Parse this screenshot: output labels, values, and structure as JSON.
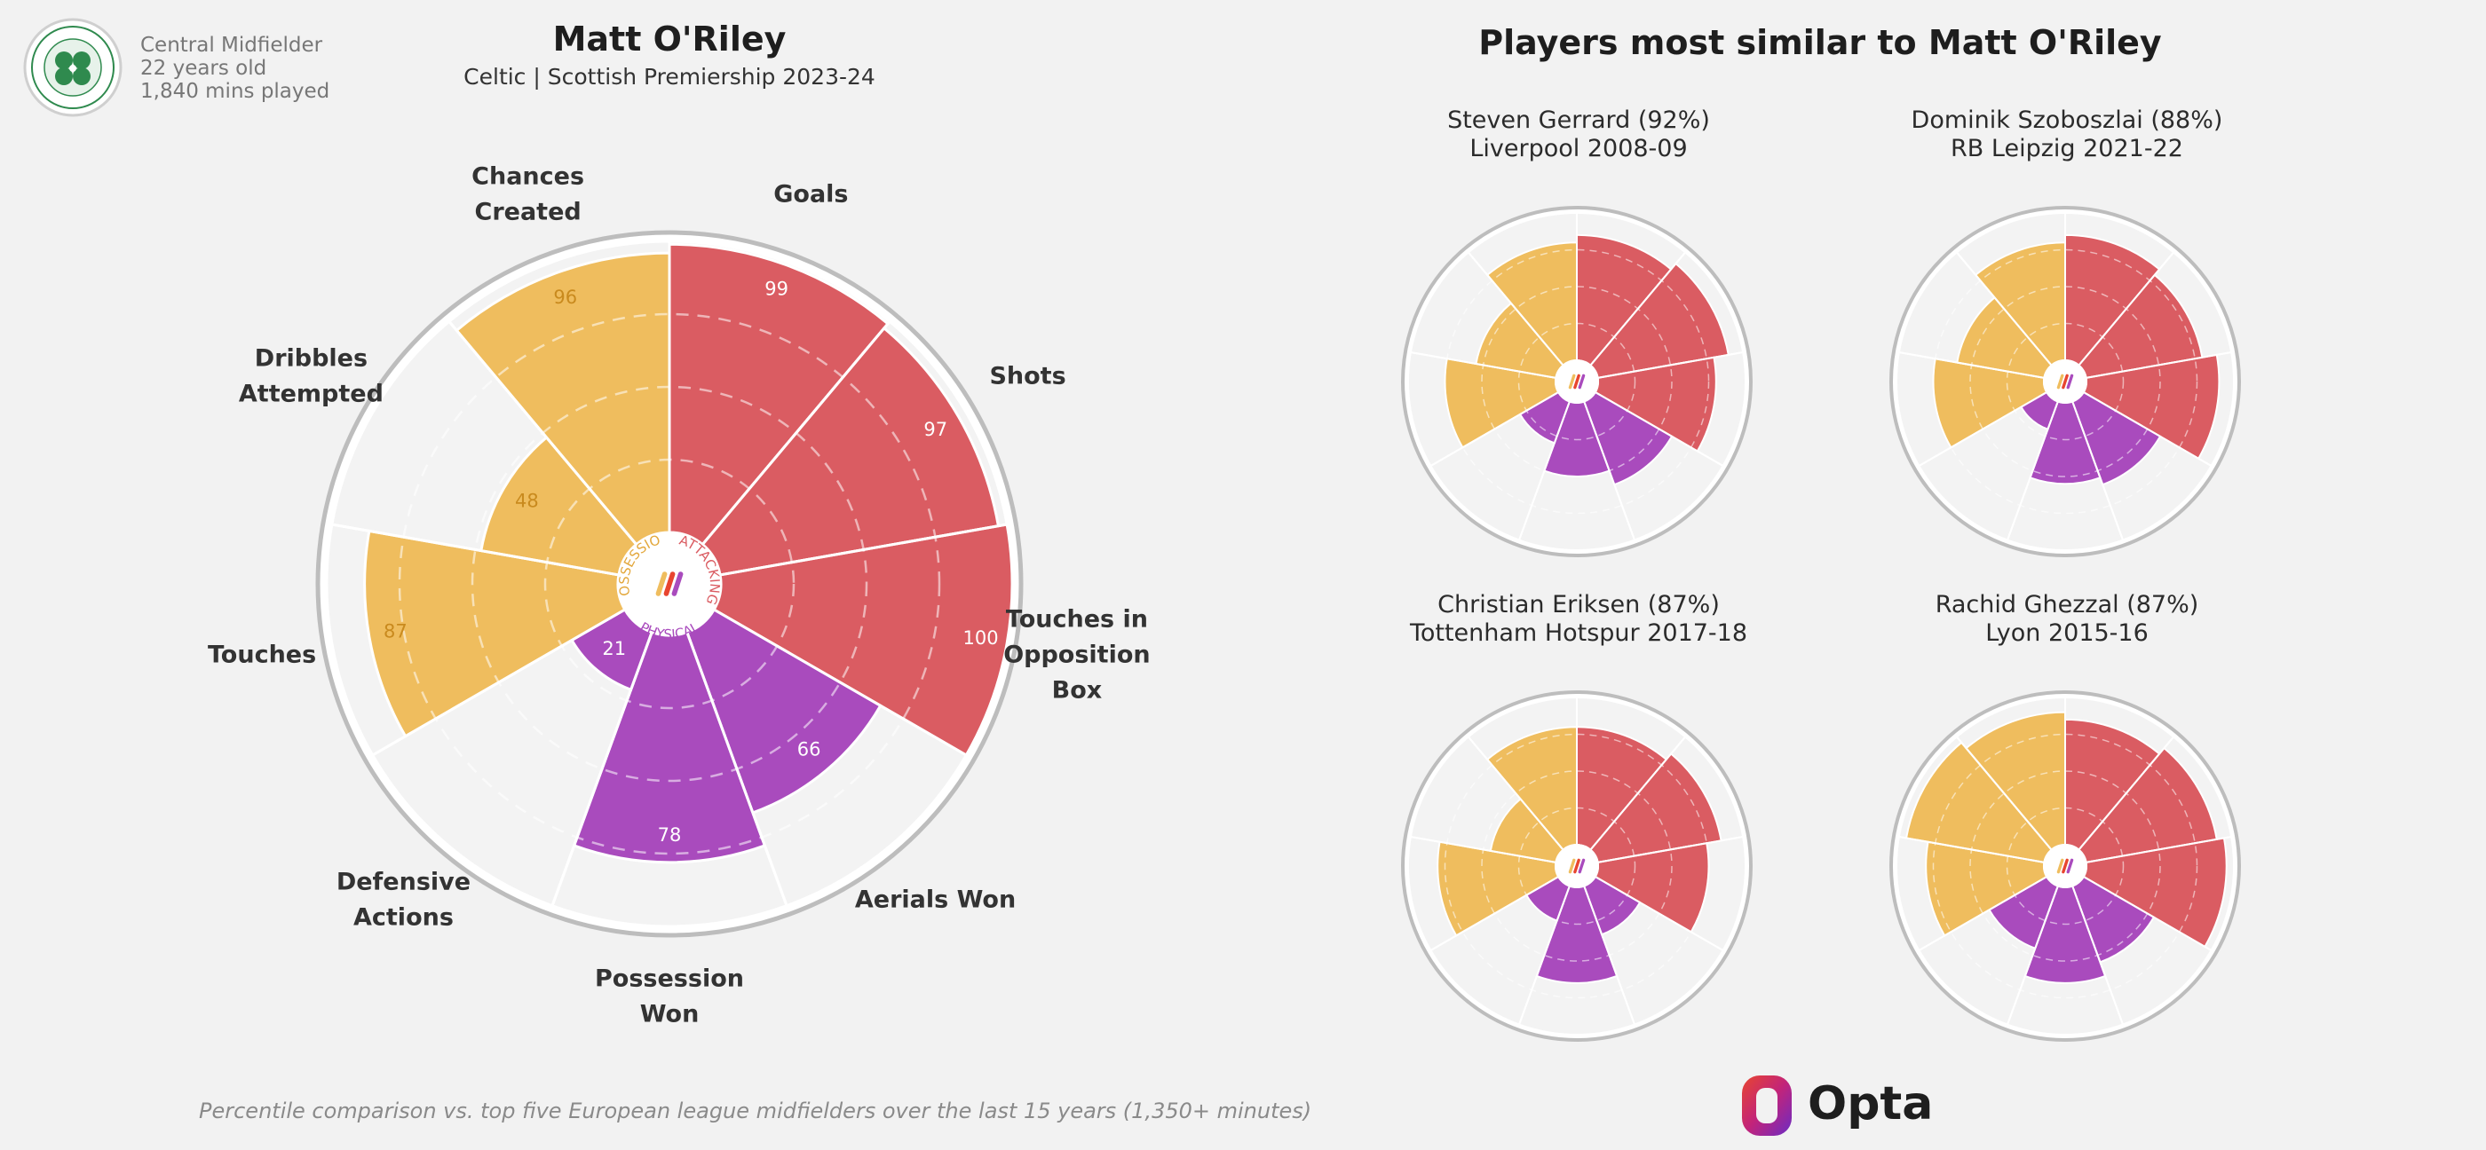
{
  "player": {
    "position": "Central Midfielder",
    "age": "22 years old",
    "minutes": "1,840 mins played",
    "name": "Matt O'Riley",
    "team_season": "Celtic | Scottish Premiership 2023-24"
  },
  "similar_title": "Players most similar to Matt O'Riley",
  "footnote": "Percentile comparison vs. top five European league midfielders over the last 15 years (1,350+ minutes)",
  "brand": {
    "name": "Opta"
  },
  "center_labels": {
    "attacking": "ATTACKING",
    "possession": "POSSESSION",
    "physical": "PHYSICAL"
  },
  "colors": {
    "attacking": "#da5c62",
    "possession": "#efbd5e",
    "physical": "#a94bbd",
    "background": "#f2f2f2",
    "ring": "#bdbdbd"
  },
  "icons": {
    "club_badge": "celtic-badge-icon",
    "brand_logo": "opta-logo-icon",
    "center_logo": "opta-mark-icon"
  },
  "chart_data": [
    {
      "type": "radar-bar",
      "title": "Matt O'Riley",
      "subtitle": "Celtic | Scottish Premiership 2023-24",
      "rlim": [
        0,
        100
      ],
      "metrics": [
        {
          "label": "Goals",
          "value": 99,
          "group": "attacking"
        },
        {
          "label": "Shots",
          "value": 97,
          "group": "attacking"
        },
        {
          "label": "Touches in Opposition Box",
          "value": 100,
          "group": "attacking"
        },
        {
          "label": "Aerials Won",
          "value": 66,
          "group": "physical"
        },
        {
          "label": "Possession Won",
          "value": 78,
          "group": "physical"
        },
        {
          "label": "Defensive Actions",
          "value": 21,
          "group": "physical"
        },
        {
          "label": "Touches",
          "value": 87,
          "group": "possession"
        },
        {
          "label": "Dribbles Attempted",
          "value": 48,
          "group": "possession"
        },
        {
          "label": "Chances Created",
          "value": 96,
          "group": "possession"
        }
      ],
      "axis_text": [
        [
          "Goals"
        ],
        [
          "Shots"
        ],
        [
          "Touches in",
          "Opposition",
          "Box"
        ],
        [
          "Aerials Won"
        ],
        [
          "Possession",
          "Won"
        ],
        [
          "Defensive",
          "Actions"
        ],
        [
          "Touches"
        ],
        [
          "Dribbles",
          "Attempted"
        ],
        [
          "Chances",
          "Created"
        ]
      ]
    },
    {
      "type": "radar-bar",
      "title": "Steven Gerrard (92%)",
      "subtitle": "Liverpool 2008-09",
      "rlim": [
        0,
        100
      ],
      "values": [
        85,
        90,
        80,
        60,
        50,
        30,
        75,
        55,
        80
      ],
      "groups": [
        "attacking",
        "attacking",
        "attacking",
        "physical",
        "physical",
        "physical",
        "possession",
        "possession",
        "possession"
      ]
    },
    {
      "type": "radar-bar",
      "title": "Dominik Szoboszlai (88%)",
      "subtitle": "RB Leipzig 2021-22",
      "rlim": [
        0,
        100
      ],
      "values": [
        85,
        80,
        90,
        60,
        55,
        20,
        75,
        60,
        80
      ],
      "groups": [
        "attacking",
        "attacking",
        "attacking",
        "physical",
        "physical",
        "physical",
        "possession",
        "possession",
        "possession"
      ]
    },
    {
      "type": "radar-bar",
      "title": "Christian Eriksen (87%)",
      "subtitle": "Tottenham Hotspur 2017-18",
      "rlim": [
        0,
        100
      ],
      "values": [
        80,
        85,
        75,
        35,
        65,
        25,
        80,
        45,
        80
      ],
      "groups": [
        "attacking",
        "attacking",
        "attacking",
        "physical",
        "physical",
        "physical",
        "possession",
        "possession",
        "possession"
      ]
    },
    {
      "type": "radar-bar",
      "title": "Rachid Ghezzal (87%)",
      "subtitle": "Lyon 2015-16",
      "rlim": [
        0,
        100
      ],
      "values": [
        85,
        90,
        95,
        55,
        65,
        45,
        80,
        95,
        90
      ],
      "groups": [
        "attacking",
        "attacking",
        "attacking",
        "physical",
        "physical",
        "physical",
        "possession",
        "possession",
        "possession"
      ]
    }
  ]
}
